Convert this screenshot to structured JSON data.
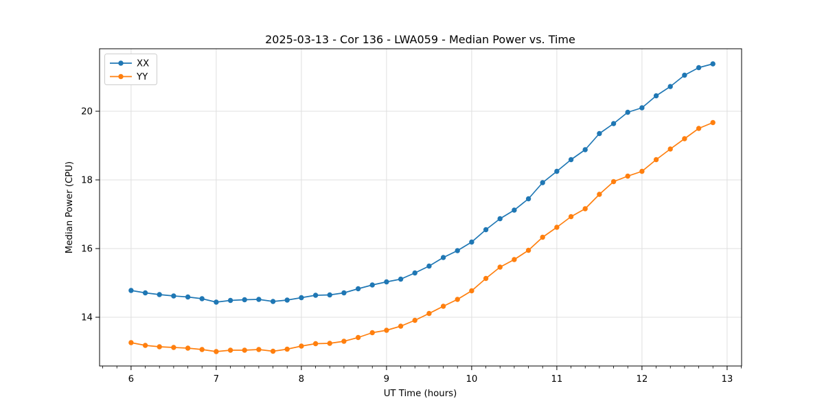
{
  "figure": {
    "background": "#ffffff",
    "spine_color": "#000000",
    "grid_color": "#dfdfdf",
    "tick_color": "#000000",
    "legend_border_color": "#cccccc"
  },
  "chart_data": {
    "type": "line",
    "title": "2025-03-13 - Cor 136 - LWA059 - Median Power vs. Time",
    "xlabel": "UT Time (hours)",
    "ylabel": "Median Power (CPU)",
    "xlim": [
      5.63,
      13.17
    ],
    "ylim": [
      12.58,
      21.82
    ],
    "x_major_ticks": [
      6,
      7,
      8,
      9,
      10,
      11,
      12,
      13
    ],
    "y_major_ticks": [
      14,
      16,
      18,
      20
    ],
    "x_minor_step": 0.1667,
    "grid": true,
    "legend": {
      "position": "upper-left"
    },
    "x": [
      6.0,
      6.167,
      6.333,
      6.5,
      6.667,
      6.833,
      7.0,
      7.167,
      7.333,
      7.5,
      7.667,
      7.833,
      8.0,
      8.167,
      8.333,
      8.5,
      8.667,
      8.833,
      9.0,
      9.167,
      9.333,
      9.5,
      9.667,
      9.833,
      10.0,
      10.167,
      10.333,
      10.5,
      10.667,
      10.833,
      11.0,
      11.167,
      11.333,
      11.5,
      11.667,
      11.833,
      12.0,
      12.167,
      12.333,
      12.5,
      12.667,
      12.833
    ],
    "series": [
      {
        "name": "XX",
        "color": "#1f77b4",
        "values": [
          14.78,
          14.71,
          14.66,
          14.62,
          14.59,
          14.54,
          14.44,
          14.49,
          14.51,
          14.52,
          14.46,
          14.5,
          14.57,
          14.64,
          14.65,
          14.71,
          14.83,
          14.94,
          15.03,
          15.11,
          15.29,
          15.49,
          15.74,
          15.94,
          16.19,
          16.55,
          16.87,
          17.12,
          17.45,
          17.92,
          18.25,
          18.59,
          18.88,
          19.35,
          19.64,
          19.97,
          20.1,
          20.45,
          20.72,
          21.05,
          21.27,
          21.38
        ]
      },
      {
        "name": "YY",
        "color": "#ff7f0e",
        "values": [
          13.26,
          13.18,
          13.14,
          13.12,
          13.1,
          13.06,
          13.0,
          13.04,
          13.04,
          13.06,
          13.01,
          13.07,
          13.16,
          13.23,
          13.24,
          13.3,
          13.41,
          13.55,
          13.62,
          13.74,
          13.91,
          14.11,
          14.32,
          14.52,
          14.77,
          15.13,
          15.46,
          15.68,
          15.95,
          16.33,
          16.62,
          16.93,
          17.16,
          17.58,
          17.95,
          18.11,
          18.25,
          18.59,
          18.9,
          19.2,
          19.5,
          19.67
        ]
      }
    ]
  }
}
